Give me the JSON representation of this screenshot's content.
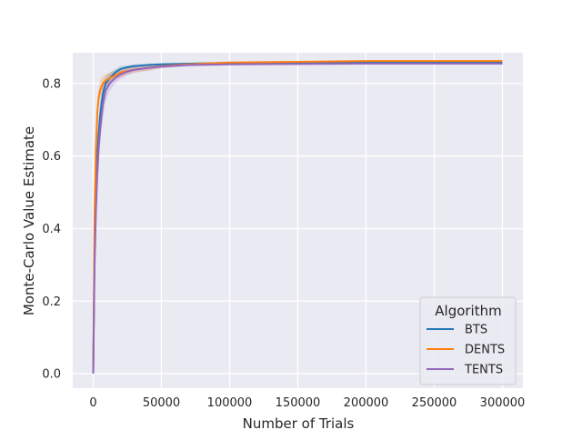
{
  "chart_data": {
    "type": "line",
    "title": "",
    "xlabel": "Number of Trials",
    "ylabel": "Monte-Carlo Value Estimate",
    "xlim": [
      -15000,
      315000
    ],
    "ylim": [
      -0.04,
      0.885
    ],
    "xticks": [
      0,
      50000,
      100000,
      150000,
      200000,
      250000,
      300000
    ],
    "xtick_labels": [
      "0",
      "50000",
      "100000",
      "150000",
      "200000",
      "250000",
      "300000"
    ],
    "yticks": [
      0.0,
      0.2,
      0.4,
      0.6,
      0.8
    ],
    "ytick_labels": [
      "0.0",
      "0.2",
      "0.4",
      "0.6",
      "0.8"
    ],
    "grid": true,
    "background": "#eaeaf2",
    "legend": {
      "title": "Algorithm",
      "placement": "lower right"
    },
    "series": [
      {
        "name": "BTS",
        "color": "#1f77b4",
        "x": [
          0,
          1000,
          2000,
          3000,
          4000,
          5000,
          7000,
          9000,
          12000,
          16000,
          20000,
          25000,
          30000,
          40000,
          50000,
          70000,
          100000,
          150000,
          200000,
          250000,
          300000
        ],
        "y": [
          0.0,
          0.35,
          0.5,
          0.6,
          0.66,
          0.71,
          0.77,
          0.8,
          0.815,
          0.83,
          0.84,
          0.845,
          0.848,
          0.851,
          0.853,
          0.855,
          0.857,
          0.858,
          0.858,
          0.859,
          0.859
        ],
        "ci_low": [
          0.0,
          0.3,
          0.45,
          0.55,
          0.62,
          0.67,
          0.74,
          0.78,
          0.8,
          0.82,
          0.83,
          0.84,
          0.843,
          0.847,
          0.85,
          0.853,
          0.855,
          0.856,
          0.857,
          0.858,
          0.858
        ],
        "ci_high": [
          0.0,
          0.4,
          0.55,
          0.65,
          0.7,
          0.75,
          0.8,
          0.82,
          0.83,
          0.84,
          0.848,
          0.85,
          0.853,
          0.855,
          0.856,
          0.857,
          0.858,
          0.859,
          0.859,
          0.86,
          0.86
        ]
      },
      {
        "name": "DENTS",
        "color": "#ff7f0e",
        "x": [
          0,
          1000,
          2000,
          3000,
          4000,
          5000,
          7000,
          9000,
          12000,
          16000,
          20000,
          25000,
          30000,
          40000,
          50000,
          70000,
          100000,
          150000,
          200000,
          250000,
          300000
        ],
        "y": [
          0.0,
          0.45,
          0.62,
          0.72,
          0.76,
          0.78,
          0.8,
          0.808,
          0.815,
          0.822,
          0.83,
          0.835,
          0.838,
          0.843,
          0.848,
          0.853,
          0.858,
          0.86,
          0.862,
          0.862,
          0.862
        ],
        "ci_low": [
          0.0,
          0.4,
          0.57,
          0.68,
          0.73,
          0.76,
          0.78,
          0.79,
          0.8,
          0.81,
          0.818,
          0.825,
          0.83,
          0.835,
          0.842,
          0.85,
          0.856,
          0.858,
          0.86,
          0.86,
          0.86
        ],
        "ci_high": [
          0.0,
          0.5,
          0.67,
          0.76,
          0.79,
          0.81,
          0.82,
          0.826,
          0.83,
          0.835,
          0.84,
          0.845,
          0.847,
          0.85,
          0.853,
          0.856,
          0.86,
          0.862,
          0.864,
          0.864,
          0.864
        ]
      },
      {
        "name": "TENTS",
        "color": "#9467bd",
        "x": [
          0,
          1000,
          2000,
          3000,
          4000,
          5000,
          7000,
          9000,
          12000,
          16000,
          20000,
          25000,
          30000,
          40000,
          50000,
          70000,
          100000,
          150000,
          200000,
          250000,
          300000
        ],
        "y": [
          0.0,
          0.3,
          0.45,
          0.55,
          0.62,
          0.67,
          0.74,
          0.78,
          0.8,
          0.815,
          0.825,
          0.833,
          0.838,
          0.843,
          0.847,
          0.851,
          0.853,
          0.854,
          0.855,
          0.855,
          0.855
        ],
        "ci_low": [
          0.0,
          0.25,
          0.4,
          0.5,
          0.57,
          0.63,
          0.7,
          0.75,
          0.78,
          0.8,
          0.813,
          0.823,
          0.83,
          0.836,
          0.842,
          0.847,
          0.85,
          0.852,
          0.853,
          0.854,
          0.854
        ],
        "ci_high": [
          0.0,
          0.35,
          0.5,
          0.6,
          0.67,
          0.71,
          0.77,
          0.8,
          0.815,
          0.828,
          0.835,
          0.842,
          0.845,
          0.849,
          0.852,
          0.854,
          0.856,
          0.856,
          0.857,
          0.857,
          0.857
        ]
      }
    ]
  }
}
